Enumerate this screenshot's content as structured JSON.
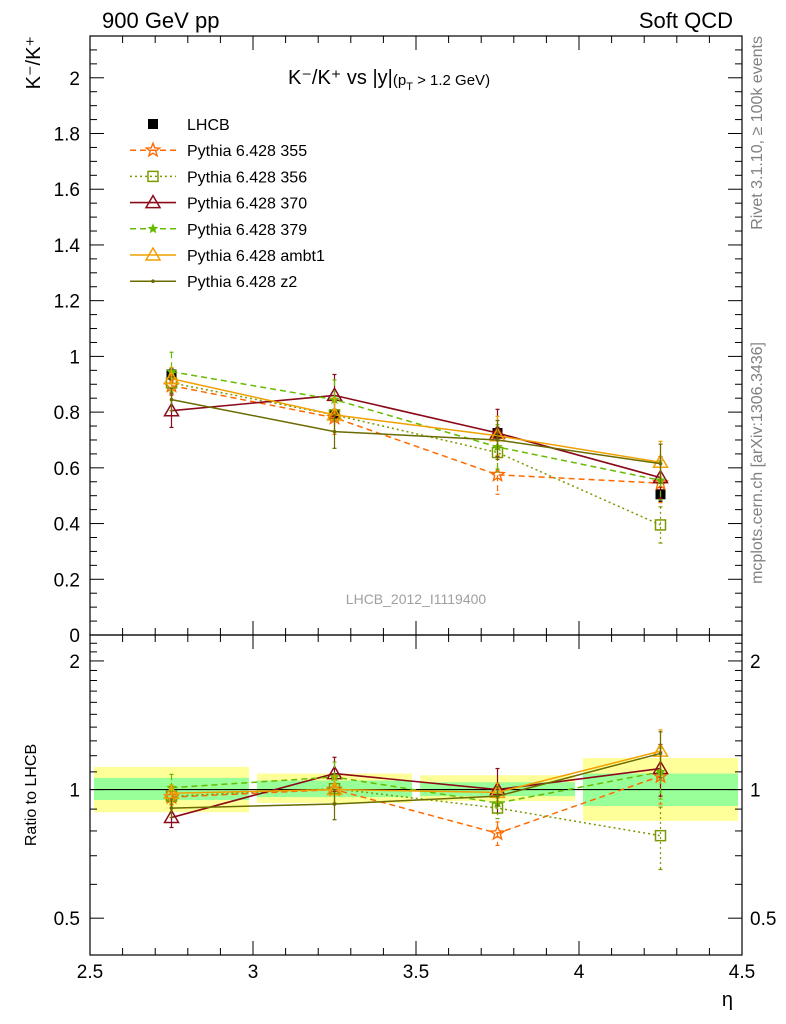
{
  "header": {
    "left": "900 GeV pp",
    "right": "Soft QCD"
  },
  "side_text": {
    "rivet": "Rivet 3.1.10, ≥ 100k events",
    "mcplots": "mcplots.cern.ch [arXiv:1306.3436]"
  },
  "main_plot": {
    "title_main": "K⁻/K⁺ vs |y|",
    "title_sub": "(p",
    "title_sub_index": "T",
    "title_sub_rest": " > 1.2 GeV)",
    "ylabel": "K⁻/K⁺",
    "watermark": "LHCB_2012_I1119400"
  },
  "ratio_plot": {
    "ylabel": "Ratio to LHCB"
  },
  "colors": {
    "data": "#000000",
    "p355": "#ff6a00",
    "p356": "#7a9a00",
    "p370": "#8b0a1a",
    "p379": "#66bb00",
    "ambt1": "#f0a000",
    "z2": "#6b6b00",
    "band_inner": "#99ff99",
    "band_outer": "#ffff99"
  },
  "chart_data": [
    {
      "type": "scatter",
      "panel": "main",
      "title": "K⁻/K⁺ vs |y|(pT > 1.2 GeV)",
      "xlabel": "η",
      "ylabel": "K⁻/K⁺",
      "xlim": [
        2.5,
        4.5
      ],
      "ylim": [
        0,
        2.15
      ],
      "x_ticks": [
        "2.5",
        "3",
        "3.5",
        "4",
        "4.5"
      ],
      "y_ticks": [
        "0",
        "0.2",
        "0.4",
        "0.6",
        "0.8",
        "1",
        "1.2",
        "1.4",
        "1.6",
        "1.8",
        "2"
      ],
      "legend_position": "top-left",
      "x": [
        2.75,
        3.25,
        3.75,
        4.25
      ],
      "series": [
        {
          "name": "LHCB",
          "marker": "square-filled",
          "values": [
            0.935,
            0.79,
            0.725,
            0.505
          ],
          "errors": [
            0.02,
            0.02,
            0.02,
            0.025
          ]
        },
        {
          "name": "Pythia 6.428 355",
          "marker": "star",
          "line": "dashed",
          "values": [
            0.895,
            0.78,
            0.575,
            0.545
          ],
          "errors": [
            0.035,
            0.06,
            0.07,
            0.07
          ]
        },
        {
          "name": "Pythia 6.428 356",
          "marker": "square-open",
          "line": "dotted",
          "values": [
            0.905,
            0.79,
            0.655,
            0.395
          ],
          "errors": [
            0.035,
            0.06,
            0.07,
            0.065
          ]
        },
        {
          "name": "Pythia 6.428 370",
          "marker": "triangle-open",
          "line": "solid",
          "values": [
            0.805,
            0.86,
            0.725,
            0.565
          ],
          "errors": [
            0.06,
            0.075,
            0.085,
            0.075
          ]
        },
        {
          "name": "Pythia 6.428 379",
          "marker": "star-small",
          "line": "dashed",
          "values": [
            0.945,
            0.845,
            0.675,
            0.555
          ],
          "errors": [
            0.07,
            0.07,
            0.08,
            0.07
          ]
        },
        {
          "name": "Pythia 6.428 ambt1",
          "marker": "triangle-open",
          "line": "solid",
          "values": [
            0.92,
            0.79,
            0.715,
            0.62
          ],
          "errors": [
            0.04,
            0.06,
            0.07,
            0.075
          ]
        },
        {
          "name": "Pythia 6.428 z2",
          "marker": "dot",
          "line": "solid",
          "values": [
            0.845,
            0.73,
            0.7,
            0.615
          ],
          "errors": [
            0.04,
            0.06,
            0.07,
            0.07
          ]
        }
      ]
    },
    {
      "type": "scatter",
      "panel": "ratio",
      "ylabel": "Ratio to LHCB",
      "xlabel": "η",
      "xlim": [
        2.5,
        4.5
      ],
      "ylim": [
        0.41,
        2.3
      ],
      "log_y": true,
      "y_ticks": [
        "0.5",
        "1",
        "2"
      ],
      "bins": [
        [
          2.5,
          3.0
        ],
        [
          3.0,
          3.5
        ],
        [
          3.5,
          4.0
        ],
        [
          4.0,
          4.5
        ]
      ],
      "band_inner": [
        [
          0.945,
          1.065
        ],
        [
          0.96,
          1.05
        ],
        [
          0.965,
          1.04
        ],
        [
          0.915,
          1.09
        ]
      ],
      "band_outer": [
        [
          0.885,
          1.13
        ],
        [
          0.93,
          1.09
        ],
        [
          0.94,
          1.08
        ],
        [
          0.845,
          1.185
        ]
      ],
      "x": [
        2.75,
        3.25,
        3.75,
        4.25
      ],
      "series": [
        {
          "name": "Pythia 6.428 355",
          "values": [
            0.96,
            1.0,
            0.79,
            1.075
          ],
          "errors": [
            0.04,
            0.075,
            0.05,
            0.15
          ]
        },
        {
          "name": "Pythia 6.428 356",
          "values": [
            0.965,
            1.005,
            0.905,
            0.78
          ],
          "errors": [
            0.04,
            0.075,
            0.05,
            0.13
          ]
        },
        {
          "name": "Pythia 6.428 370",
          "values": [
            0.86,
            1.09,
            1.0,
            1.12
          ],
          "errors": [
            0.045,
            0.1,
            0.12,
            0.155
          ]
        },
        {
          "name": "Pythia 6.428 379",
          "values": [
            1.01,
            1.07,
            0.93,
            1.1
          ],
          "errors": [
            0.075,
            0.09,
            0.05,
            0.15
          ]
        },
        {
          "name": "Pythia 6.428 ambt1",
          "values": [
            0.98,
            1.0,
            0.985,
            1.23
          ],
          "errors": [
            0.045,
            0.075,
            0.05,
            0.15
          ]
        },
        {
          "name": "Pythia 6.428 z2",
          "values": [
            0.905,
            0.925,
            0.965,
            1.215
          ],
          "errors": [
            0.045,
            0.075,
            0.05,
            0.15
          ]
        }
      ]
    }
  ]
}
